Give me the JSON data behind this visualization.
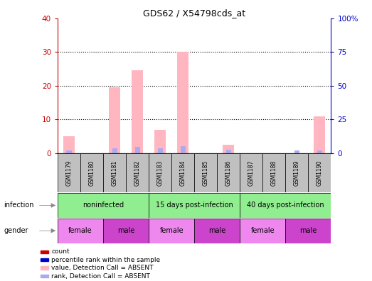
{
  "title": "GDS62 / X54798cds_at",
  "samples": [
    "GSM1179",
    "GSM1180",
    "GSM1181",
    "GSM1182",
    "GSM1183",
    "GSM1184",
    "GSM1185",
    "GSM1186",
    "GSM1187",
    "GSM1188",
    "GSM1189",
    "GSM1190"
  ],
  "pink_bars": [
    5.0,
    0,
    19.5,
    24.5,
    7.0,
    30.0,
    0,
    2.5,
    0,
    0,
    0,
    11.0
  ],
  "blue_bars": [
    0.8,
    0,
    1.5,
    1.8,
    1.5,
    2.0,
    0,
    1.0,
    0,
    0,
    0.8,
    0.8
  ],
  "ylim_left": [
    0,
    40
  ],
  "ylim_right": [
    0,
    100
  ],
  "yticks_left": [
    0,
    10,
    20,
    30,
    40
  ],
  "yticks_right": [
    0,
    25,
    50,
    75,
    100
  ],
  "ytick_labels_right": [
    "0",
    "25",
    "50",
    "75",
    "100%"
  ],
  "pink_bar_color": "#FFB6C1",
  "blue_bar_color": "#AAAAEE",
  "left_axis_color": "#CC0000",
  "right_axis_color": "#0000CC",
  "sample_box_color": "#C0C0C0",
  "infection_box_color": "#90EE90",
  "female_color": "#EE88EE",
  "male_color": "#CC44CC",
  "grid_color": "black",
  "infection_groups": [
    {
      "label": "noninfected",
      "start": 0,
      "end": 3
    },
    {
      "label": "15 days post-infection",
      "start": 4,
      "end": 7
    },
    {
      "label": "40 days post-infection",
      "start": 8,
      "end": 11
    }
  ],
  "gender_groups": [
    {
      "label": "female",
      "start": 0,
      "end": 1,
      "female": true
    },
    {
      "label": "male",
      "start": 2,
      "end": 3,
      "female": false
    },
    {
      "label": "female",
      "start": 4,
      "end": 5,
      "female": true
    },
    {
      "label": "male",
      "start": 6,
      "end": 7,
      "female": false
    },
    {
      "label": "female",
      "start": 8,
      "end": 9,
      "female": true
    },
    {
      "label": "male",
      "start": 10,
      "end": 11,
      "female": false
    }
  ],
  "legend_items": [
    {
      "color": "#CC0000",
      "label": "count"
    },
    {
      "color": "#0000CC",
      "label": "percentile rank within the sample"
    },
    {
      "color": "#FFB6C1",
      "label": "value, Detection Call = ABSENT"
    },
    {
      "color": "#AAAAEE",
      "label": "rank, Detection Call = ABSENT"
    }
  ]
}
